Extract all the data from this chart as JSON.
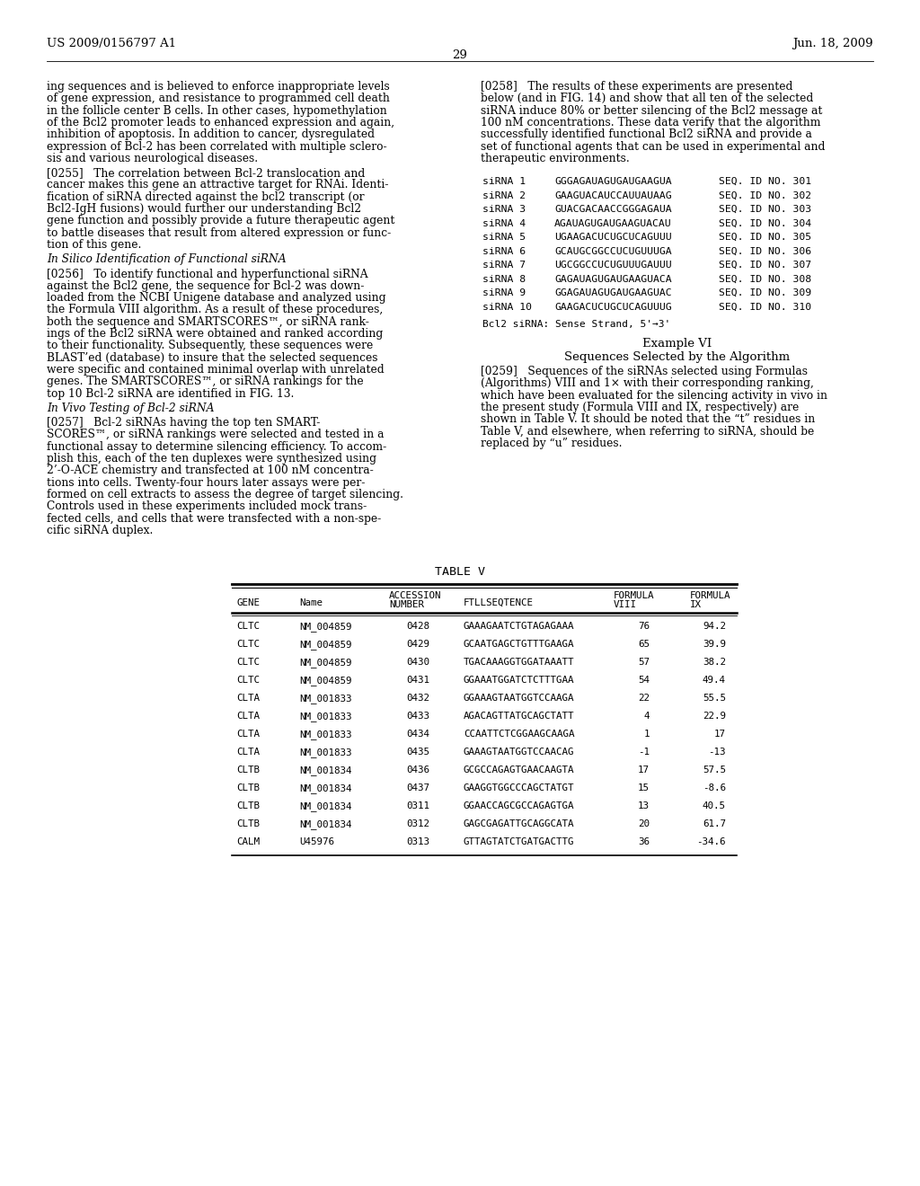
{
  "header_left": "US 2009/0156797 A1",
  "header_right": "Jun. 18, 2009",
  "page_number": "29",
  "background_color": "#ffffff",
  "left_col_paragraphs": [
    {
      "text": "ing sequences and is believed to enforce inappropriate levels\nof gene expression, and resistance to programmed cell death\nin the follicle center B cells. In other cases, hypomethylation\nof the Bcl2 promoter leads to enhanced expression and again,\ninhibition of apoptosis. In addition to cancer, dysregulated\nexpression of Bcl-2 has been correlated with multiple sclero-\nsis and various neurological diseases.",
      "style": "normal"
    },
    {
      "text": "[0255]   The correlation between Bcl-2 translocation and\ncancer makes this gene an attractive target for RNAi. Identi-\nfication of siRNA directed against the bcl2 transcript (or\nBcl2-IgH fusions) would further our understanding Bcl2\ngene function and possibly provide a future therapeutic agent\nto battle diseases that result from altered expression or func-\ntion of this gene.",
      "style": "normal"
    },
    {
      "text": "In Silico Identification of Functional siRNA",
      "style": "italic"
    },
    {
      "text": "[0256]   To identify functional and hyperfunctional siRNA\nagainst the Bcl2 gene, the sequence for Bcl-2 was down-\nloaded from the NCBI Unigene database and analyzed using\nthe Formula VIII algorithm. As a result of these procedures,\nboth the sequence and SMARTSCORES™, or siRNA rank-\nings of the Bcl2 siRNA were obtained and ranked according\nto their functionality. Subsequently, these sequences were\nBLAST’ed (database) to insure that the selected sequences\nwere specific and contained minimal overlap with unrelated\ngenes. The SMARTSCORES™, or siRNA rankings for the\ntop 10 Bcl-2 siRNA are identified in FIG. 13.",
      "style": "normal"
    },
    {
      "text": "In Vivo Testing of Bcl-2 siRNA",
      "style": "italic"
    },
    {
      "text": "[0257]   Bcl-2 siRNAs having the top ten SMART-\nSCORES™, or siRNA rankings were selected and tested in a\nfunctional assay to determine silencing efficiency. To accom-\nplish this, each of the ten duplexes were synthesized using\n2’-O-ACE chemistry and transfected at 100 nM concentra-\ntions into cells. Twenty-four hours later assays were per-\nformed on cell extracts to assess the degree of target silencing.\nControls used in these experiments included mock trans-\nfected cells, and cells that were transfected with a non-spe-\ncific siRNA duplex.",
      "style": "normal"
    }
  ],
  "right_col_para_258": "[0258]   The results of these experiments are presented\nbelow (and in FIG. 14) and show that all ten of the selected\nsiRNA induce 80% or better silencing of the Bcl2 message at\n100 nM concentrations. These data verify that the algorithm\nsuccessfully identified functional Bcl2 siRNA and provide a\nset of functional agents that can be used in experimental and\ntherapeutic environments.",
  "sirna_data": [
    {
      "num": "1",
      "seq": "GGGAGAUAGUGAUGAAGUA",
      "seqid": "SEQ. ID NO. 301"
    },
    {
      "num": "2",
      "seq": "GAAGUACAUCCAUUAUAAG",
      "seqid": "SEQ. ID NO. 302"
    },
    {
      "num": "3",
      "seq": "GUACGACAACCGGGAGAUA",
      "seqid": "SEQ. ID NO. 303"
    },
    {
      "num": "4",
      "seq": "AGAUAGUGAUGAAGUACAU",
      "seqid": "SEQ. ID NO. 304"
    },
    {
      "num": "5",
      "seq": "UGAAGACUCUGCUCAGUUU",
      "seqid": "SEQ. ID NO. 305"
    },
    {
      "num": "6",
      "seq": "GCAUGCGGCCUCUGUUUGA",
      "seqid": "SEQ. ID NO. 306"
    },
    {
      "num": "7",
      "seq": "UGCGGCCUCUGUUUGAUUU",
      "seqid": "SEQ. ID NO. 307"
    },
    {
      "num": "8",
      "seq": "GAGAUAGUGAUGAAGUACA",
      "seqid": "SEQ. ID NO. 308"
    },
    {
      "num": "9",
      "seq": "GGAGAUAGUGAUGAAGUAC",
      "seqid": "SEQ. ID NO. 309"
    },
    {
      "num": "10",
      "seq": "GAAGACUCUGCUCAGUUUG",
      "seqid": "SEQ. ID NO. 310"
    }
  ],
  "sirna_footer": "Bcl2 siRNA: Sense Strand, 5'→3'",
  "example_heading": "Example VI",
  "example_subheading": "Sequences Selected by the Algorithm",
  "right_col_para_259": "[0259]   Sequences of the siRNAs selected using Formulas\n(Algorithms) VIII and 1× with their corresponding ranking,\nwhich have been evaluated for the silencing activity in vivo in\nthe present study (Formula VIII and IX, respectively) are\nshown in Table V. It should be noted that the “t” residues in\nTable V, and elsewhere, when referring to siRNA, should be\nreplaced by “u” residues.",
  "table_title": "TABLE V",
  "table_data": [
    [
      "CLTC",
      "NM_004859",
      "0428",
      "GAAAGAATCTGTAGAGAAA",
      "76",
      "94.2"
    ],
    [
      "CLTC",
      "NM_004859",
      "0429",
      "GCAATGAGCTGTTTGAAGA",
      "65",
      "39.9"
    ],
    [
      "CLTC",
      "NM_004859",
      "0430",
      "TGACAAAGGTGGATAAATT",
      "57",
      "38.2"
    ],
    [
      "CLTC",
      "NM_004859",
      "0431",
      "GGAAATGGATCTCTTTGAA",
      "54",
      "49.4"
    ],
    [
      "CLTA",
      "NM_001833",
      "0432",
      "GGAAAGTAATGGTCCAAGA",
      "22",
      "55.5"
    ],
    [
      "CLTA",
      "NM_001833",
      "0433",
      "AGACAGTTATGCAGCTATT",
      "4",
      "22.9"
    ],
    [
      "CLTA",
      "NM_001833",
      "0434",
      "CCAATTCTCGGAAGCAAGA",
      "1",
      "17"
    ],
    [
      "CLTA",
      "NM_001833",
      "0435",
      "GAAAGTAATGGTCCAACAG",
      "-1",
      "-13"
    ],
    [
      "CLTB",
      "NM_001834",
      "0436",
      "GCGCCAGAGTGAACAAGTA",
      "17",
      "57.5"
    ],
    [
      "CLTB",
      "NM_001834",
      "0437",
      "GAAGGTGGCCCAGCTATGT",
      "15",
      "-8.6"
    ],
    [
      "CLTB",
      "NM_001834",
      "0311",
      "GGAACCAGCGCCAGAGTGA",
      "13",
      "40.5"
    ],
    [
      "CLTB",
      "NM_001834",
      "0312",
      "GAGCGAGATTGCAGGCATA",
      "20",
      "61.7"
    ],
    [
      "CALM",
      "U45976",
      "0313",
      "GTTAGTATCTGATGACTTG",
      "36",
      "-34.6"
    ]
  ]
}
